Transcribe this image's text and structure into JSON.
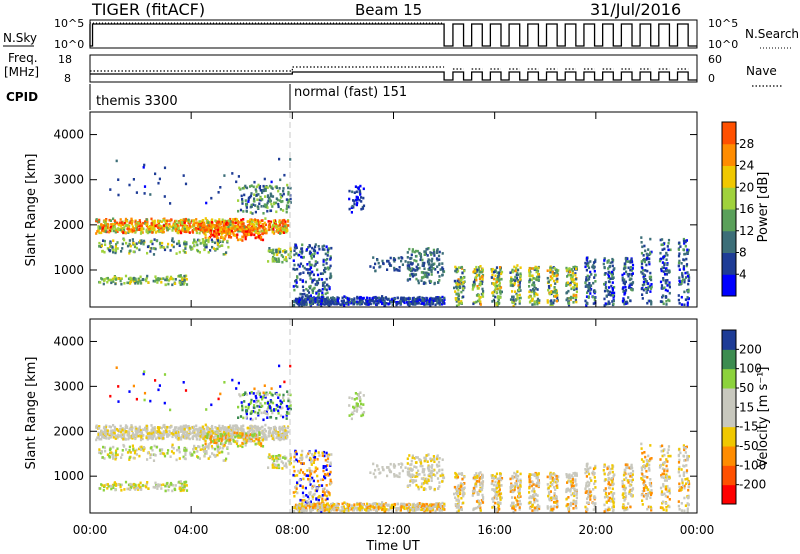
{
  "header": {
    "radar_title": "TIGER (fitACF)",
    "beam": "Beam 15",
    "date": "31/Jul/2016"
  },
  "side_labels": {
    "nsky": "N.Sky",
    "nsearch": "N.Search",
    "freq": "Freq.",
    "freq_unit": "[MHz]",
    "nave": "Nave",
    "cpid": "CPID"
  },
  "noise_axis": {
    "left_top": "10^5",
    "left_bottom": "10^0",
    "right_top": "10^5",
    "right_bottom": "10^0"
  },
  "freq_axis": {
    "left_top": "18",
    "left_bottom": "8",
    "right_top": "60",
    "right_bottom": "0"
  },
  "cpid": [
    {
      "label": "themis 3300",
      "start_hour": 0,
      "end_hour": 8
    },
    {
      "label": "normal (fast) 151",
      "start_hour": 8,
      "end_hour": 24
    }
  ],
  "colors": {
    "frame": "#000000",
    "split_line": "#c8c8c8",
    "power_scale": [
      "#0000ff",
      "#1e3c96",
      "#3c6e78",
      "#5aa05a",
      "#a0d23c",
      "#f0c800",
      "#ff8c00",
      "#ff5000",
      "#ff0000"
    ],
    "velocity_scale": [
      "#ff0000",
      "#ff5000",
      "#ff8c00",
      "#f0c800",
      "#c8c8be",
      "#c8c8be",
      "#8cd23c",
      "#3c8c50",
      "#1e3c96",
      "#0000ff"
    ]
  },
  "chart_data": [
    {
      "type": "heatmap",
      "name": "power",
      "xlabel": "",
      "ylabel": "Slant Range [km]",
      "xlim": [
        0,
        24
      ],
      "ylim": [
        180,
        4500
      ],
      "yticks": [
        "1000",
        "2000",
        "3000",
        "4000"
      ],
      "colorbar": {
        "label": "Power [dB]",
        "min": 0,
        "max": 32,
        "ticks": [
          "4",
          "8",
          "12",
          "16",
          "20",
          "24",
          "28"
        ]
      }
    },
    {
      "type": "heatmap",
      "name": "velocity",
      "xlabel": "Time UT",
      "ylabel": "Slant Range [km]",
      "xlim": [
        0,
        24
      ],
      "ylim": [
        180,
        4500
      ],
      "yticks": [
        "1000",
        "2000",
        "3000",
        "4000"
      ],
      "xticks": [
        "00:00",
        "04:00",
        "08:00",
        "12:00",
        "16:00",
        "20:00",
        "00:00"
      ],
      "colorbar": {
        "label": "Velocity [m s⁻¹]",
        "ticks": [
          "-200",
          "-100",
          "-50",
          "-15",
          "15",
          "50",
          "100",
          "200"
        ]
      }
    }
  ]
}
